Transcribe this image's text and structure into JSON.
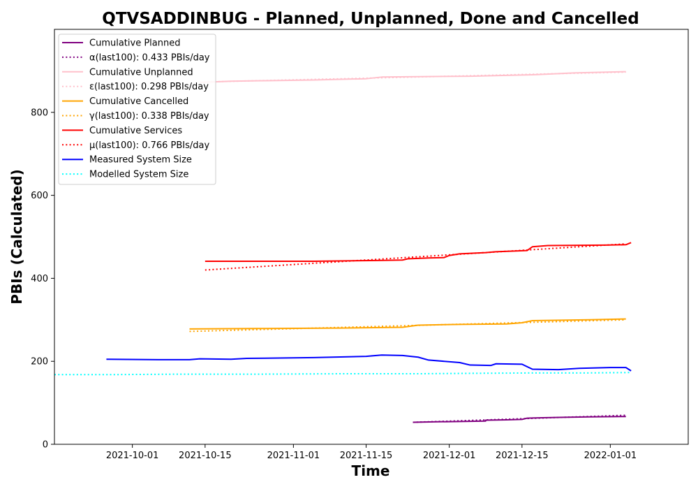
{
  "chart_data": {
    "type": "line",
    "title": "QTVSADDINBUG - Planned, Unplanned, Done  and Cancelled",
    "xlabel": "Time",
    "ylabel": "PBIs (Calculated)",
    "xlim": [
      "2021-09-16",
      "2022-01-16"
    ],
    "ylim": [
      0,
      1000
    ],
    "x_ticks": [
      "2021-10-01",
      "2021-10-15",
      "2021-11-01",
      "2021-11-15",
      "2021-12-01",
      "2021-12-15",
      "2022-01-01"
    ],
    "y_ticks": [
      0,
      200,
      400,
      600,
      800
    ],
    "grid": false,
    "legend_position": "top-left",
    "series": [
      {
        "name": "Cumulative Planned",
        "color": "#800080",
        "style": "solid",
        "points": [
          [
            "2021-11-24",
            53
          ],
          [
            "2021-11-28",
            54
          ],
          [
            "2021-12-03",
            55
          ],
          [
            "2021-12-08",
            56
          ],
          [
            "2021-12-08",
            58
          ],
          [
            "2021-12-12",
            59
          ],
          [
            "2021-12-15",
            60
          ],
          [
            "2021-12-16",
            63
          ],
          [
            "2021-12-19",
            64
          ],
          [
            "2021-12-23",
            65
          ],
          [
            "2021-12-28",
            66
          ],
          [
            "2022-01-04",
            67
          ]
        ]
      },
      {
        "name": "α(last100): 0.433 PBIs/day",
        "color": "#800080",
        "style": "dotted",
        "points": [
          [
            "2021-11-24",
            53
          ],
          [
            "2022-01-04",
            70
          ]
        ]
      },
      {
        "name": "Cumulative Unplanned",
        "color": "#ffc0cb",
        "style": "solid",
        "points": [
          [
            "2021-10-14",
            872
          ],
          [
            "2021-10-20",
            875
          ],
          [
            "2021-10-25",
            876
          ],
          [
            "2021-11-05",
            878
          ],
          [
            "2021-11-15",
            881
          ],
          [
            "2021-11-18",
            885
          ],
          [
            "2021-11-25",
            886
          ],
          [
            "2021-12-05",
            887
          ],
          [
            "2021-12-12",
            889
          ],
          [
            "2021-12-18",
            891
          ],
          [
            "2021-12-25",
            895
          ],
          [
            "2022-01-04",
            898
          ]
        ]
      },
      {
        "name": "ε(last100): 0.298 PBIs/day",
        "color": "#ffc0cb",
        "style": "dotted",
        "points": [
          [
            "2021-10-14",
            873
          ],
          [
            "2022-01-04",
            897
          ]
        ]
      },
      {
        "name": "Cumulative Cancelled",
        "color": "#ffa500",
        "style": "solid",
        "points": [
          [
            "2021-10-12",
            278
          ],
          [
            "2021-10-25",
            279
          ],
          [
            "2021-11-10",
            280
          ],
          [
            "2021-11-22",
            282
          ],
          [
            "2021-11-25",
            287
          ],
          [
            "2021-12-03",
            289
          ],
          [
            "2021-12-12",
            290
          ],
          [
            "2021-12-15",
            293
          ],
          [
            "2021-12-17",
            298
          ],
          [
            "2021-12-28",
            300
          ],
          [
            "2022-01-04",
            302
          ]
        ]
      },
      {
        "name": "γ(last100): 0.338 PBIs/day",
        "color": "#ffa500",
        "style": "dotted",
        "points": [
          [
            "2021-10-12",
            272
          ],
          [
            "2022-01-04",
            300
          ]
        ]
      },
      {
        "name": "Cumulative Services",
        "color": "#ff0000",
        "style": "solid",
        "points": [
          [
            "2021-10-15",
            441
          ],
          [
            "2021-11-05",
            441
          ],
          [
            "2021-11-17",
            443
          ],
          [
            "2021-11-22",
            444
          ],
          [
            "2021-11-23",
            447
          ],
          [
            "2021-11-27",
            449
          ],
          [
            "2021-11-30",
            450
          ],
          [
            "2021-12-01",
            455
          ],
          [
            "2021-12-03",
            459
          ],
          [
            "2021-12-08",
            462
          ],
          [
            "2021-12-10",
            464
          ],
          [
            "2021-12-16",
            467
          ],
          [
            "2021-12-17",
            476
          ],
          [
            "2021-12-20",
            479
          ],
          [
            "2021-12-31",
            480
          ],
          [
            "2022-01-04",
            481
          ],
          [
            "2022-01-05",
            486
          ]
        ]
      },
      {
        "name": "μ(last100): 0.766 PBIs/day",
        "color": "#ff0000",
        "style": "dotted",
        "points": [
          [
            "2021-10-15",
            420
          ],
          [
            "2022-01-04",
            483
          ]
        ]
      },
      {
        "name": "Measured System Size",
        "color": "#0000ff",
        "style": "solid",
        "points": [
          [
            "2021-09-26",
            205
          ],
          [
            "2021-10-06",
            204
          ],
          [
            "2021-10-12",
            204
          ],
          [
            "2021-10-14",
            206
          ],
          [
            "2021-10-20",
            205
          ],
          [
            "2021-10-23",
            207
          ],
          [
            "2021-11-05",
            209
          ],
          [
            "2021-11-15",
            212
          ],
          [
            "2021-11-18",
            215
          ],
          [
            "2021-11-22",
            214
          ],
          [
            "2021-11-25",
            210
          ],
          [
            "2021-11-27",
            203
          ],
          [
            "2021-12-03",
            197
          ],
          [
            "2021-12-05",
            191
          ],
          [
            "2021-12-09",
            190
          ],
          [
            "2021-12-10",
            194
          ],
          [
            "2021-12-15",
            193
          ],
          [
            "2021-12-17",
            181
          ],
          [
            "2021-12-22",
            180
          ],
          [
            "2021-12-26",
            183
          ],
          [
            "2022-01-01",
            185
          ],
          [
            "2022-01-04",
            185
          ],
          [
            "2022-01-05",
            177
          ]
        ]
      },
      {
        "name": "Modelled System Size",
        "color": "#00ffff",
        "style": "dotted",
        "points": [
          [
            "2021-09-16",
            168
          ],
          [
            "2021-09-28",
            168
          ],
          [
            "2021-10-10",
            169
          ],
          [
            "2021-10-25",
            169
          ],
          [
            "2021-11-10",
            170
          ],
          [
            "2021-11-25",
            170
          ],
          [
            "2021-12-05",
            171
          ],
          [
            "2021-12-18",
            172
          ],
          [
            "2021-12-28",
            172
          ],
          [
            "2022-01-05",
            173
          ]
        ]
      }
    ]
  }
}
